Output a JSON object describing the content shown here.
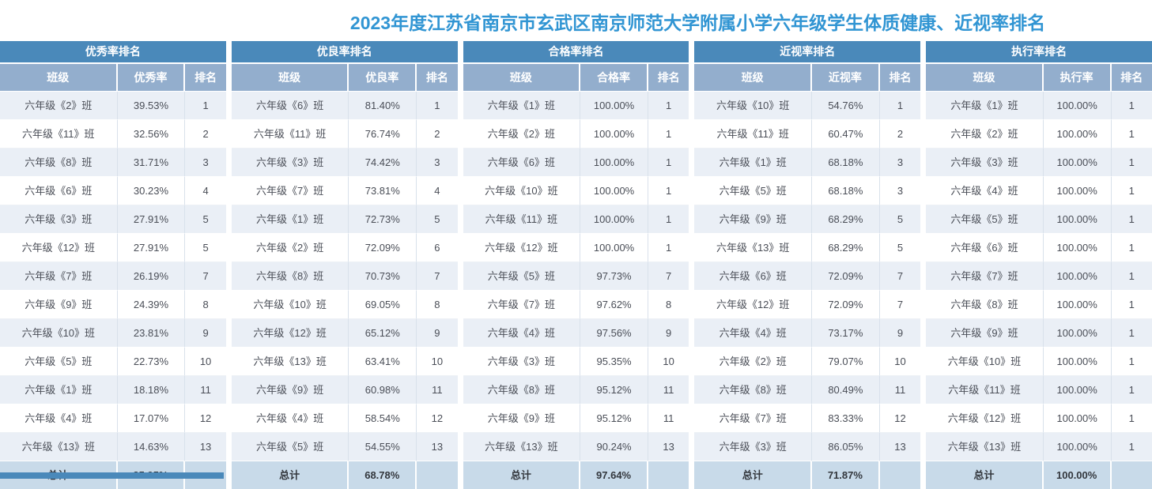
{
  "title": "2023年度江苏省南京市玄武区南京师范大学附属小学六年级学生体质健康、近视率排名",
  "colors": {
    "title_text": "#3195d3",
    "table_header_bg": "#4a89ba",
    "subheader_bg": "#93aecd",
    "odd_row_bg": "#eaeff6",
    "even_row_bg": "#ffffff",
    "total_row_bg": "#c8dae9"
  },
  "tables": [
    {
      "title": "优秀率排名",
      "columns": [
        "班级",
        "优秀率",
        "排名"
      ],
      "rows": [
        [
          "六年级《2》班",
          "39.53%",
          "1"
        ],
        [
          "六年级《11》班",
          "32.56%",
          "2"
        ],
        [
          "六年级《8》班",
          "31.71%",
          "3"
        ],
        [
          "六年级《6》班",
          "30.23%",
          "4"
        ],
        [
          "六年级《3》班",
          "27.91%",
          "5"
        ],
        [
          "六年级《12》班",
          "27.91%",
          "5"
        ],
        [
          "六年级《7》班",
          "26.19%",
          "7"
        ],
        [
          "六年级《9》班",
          "24.39%",
          "8"
        ],
        [
          "六年级《10》班",
          "23.81%",
          "9"
        ],
        [
          "六年级《5》班",
          "22.73%",
          "10"
        ],
        [
          "六年级《1》班",
          "18.18%",
          "11"
        ],
        [
          "六年级《4》班",
          "17.07%",
          "12"
        ],
        [
          "六年级《13》班",
          "14.63%",
          "13"
        ]
      ],
      "total_label": "总计",
      "total_value": "25.95%"
    },
    {
      "title": "优良率排名",
      "columns": [
        "班级",
        "优良率",
        "排名"
      ],
      "rows": [
        [
          "六年级《6》班",
          "81.40%",
          "1"
        ],
        [
          "六年级《11》班",
          "76.74%",
          "2"
        ],
        [
          "六年级《3》班",
          "74.42%",
          "3"
        ],
        [
          "六年级《7》班",
          "73.81%",
          "4"
        ],
        [
          "六年级《1》班",
          "72.73%",
          "5"
        ],
        [
          "六年级《2》班",
          "72.09%",
          "6"
        ],
        [
          "六年级《8》班",
          "70.73%",
          "7"
        ],
        [
          "六年级《10》班",
          "69.05%",
          "8"
        ],
        [
          "六年级《12》班",
          "65.12%",
          "9"
        ],
        [
          "六年级《13》班",
          "63.41%",
          "10"
        ],
        [
          "六年级《9》班",
          "60.98%",
          "11"
        ],
        [
          "六年级《4》班",
          "58.54%",
          "12"
        ],
        [
          "六年级《5》班",
          "54.55%",
          "13"
        ]
      ],
      "total_label": "总计",
      "total_value": "68.78%"
    },
    {
      "title": "合格率排名",
      "columns": [
        "班级",
        "合格率",
        "排名"
      ],
      "rows": [
        [
          "六年级《1》班",
          "100.00%",
          "1"
        ],
        [
          "六年级《2》班",
          "100.00%",
          "1"
        ],
        [
          "六年级《6》班",
          "100.00%",
          "1"
        ],
        [
          "六年级《10》班",
          "100.00%",
          "1"
        ],
        [
          "六年级《11》班",
          "100.00%",
          "1"
        ],
        [
          "六年级《12》班",
          "100.00%",
          "1"
        ],
        [
          "六年级《5》班",
          "97.73%",
          "7"
        ],
        [
          "六年级《7》班",
          "97.62%",
          "8"
        ],
        [
          "六年级《4》班",
          "97.56%",
          "9"
        ],
        [
          "六年级《3》班",
          "95.35%",
          "10"
        ],
        [
          "六年级《8》班",
          "95.12%",
          "11"
        ],
        [
          "六年级《9》班",
          "95.12%",
          "11"
        ],
        [
          "六年级《13》班",
          "90.24%",
          "13"
        ]
      ],
      "total_label": "总计",
      "total_value": "97.64%"
    },
    {
      "title": "近视率排名",
      "columns": [
        "班级",
        "近视率",
        "排名"
      ],
      "rows": [
        [
          "六年级《10》班",
          "54.76%",
          "1"
        ],
        [
          "六年级《11》班",
          "60.47%",
          "2"
        ],
        [
          "六年级《1》班",
          "68.18%",
          "3"
        ],
        [
          "六年级《5》班",
          "68.18%",
          "3"
        ],
        [
          "六年级《9》班",
          "68.29%",
          "5"
        ],
        [
          "六年级《13》班",
          "68.29%",
          "5"
        ],
        [
          "六年级《6》班",
          "72.09%",
          "7"
        ],
        [
          "六年级《12》班",
          "72.09%",
          "7"
        ],
        [
          "六年级《4》班",
          "73.17%",
          "9"
        ],
        [
          "六年级《2》班",
          "79.07%",
          "10"
        ],
        [
          "六年级《8》班",
          "80.49%",
          "11"
        ],
        [
          "六年级《7》班",
          "83.33%",
          "12"
        ],
        [
          "六年级《3》班",
          "86.05%",
          "13"
        ]
      ],
      "total_label": "总计",
      "total_value": "71.87%"
    },
    {
      "title": "执行率排名",
      "columns": [
        "班级",
        "执行率",
        "排名"
      ],
      "rows": [
        [
          "六年级《1》班",
          "100.00%",
          "1"
        ],
        [
          "六年级《2》班",
          "100.00%",
          "1"
        ],
        [
          "六年级《3》班",
          "100.00%",
          "1"
        ],
        [
          "六年级《4》班",
          "100.00%",
          "1"
        ],
        [
          "六年级《5》班",
          "100.00%",
          "1"
        ],
        [
          "六年级《6》班",
          "100.00%",
          "1"
        ],
        [
          "六年级《7》班",
          "100.00%",
          "1"
        ],
        [
          "六年级《8》班",
          "100.00%",
          "1"
        ],
        [
          "六年级《9》班",
          "100.00%",
          "1"
        ],
        [
          "六年级《10》班",
          "100.00%",
          "1"
        ],
        [
          "六年级《11》班",
          "100.00%",
          "1"
        ],
        [
          "六年级《12》班",
          "100.00%",
          "1"
        ],
        [
          "六年级《13》班",
          "100.00%",
          "1"
        ]
      ],
      "total_label": "总计",
      "total_value": "100.00%"
    }
  ]
}
